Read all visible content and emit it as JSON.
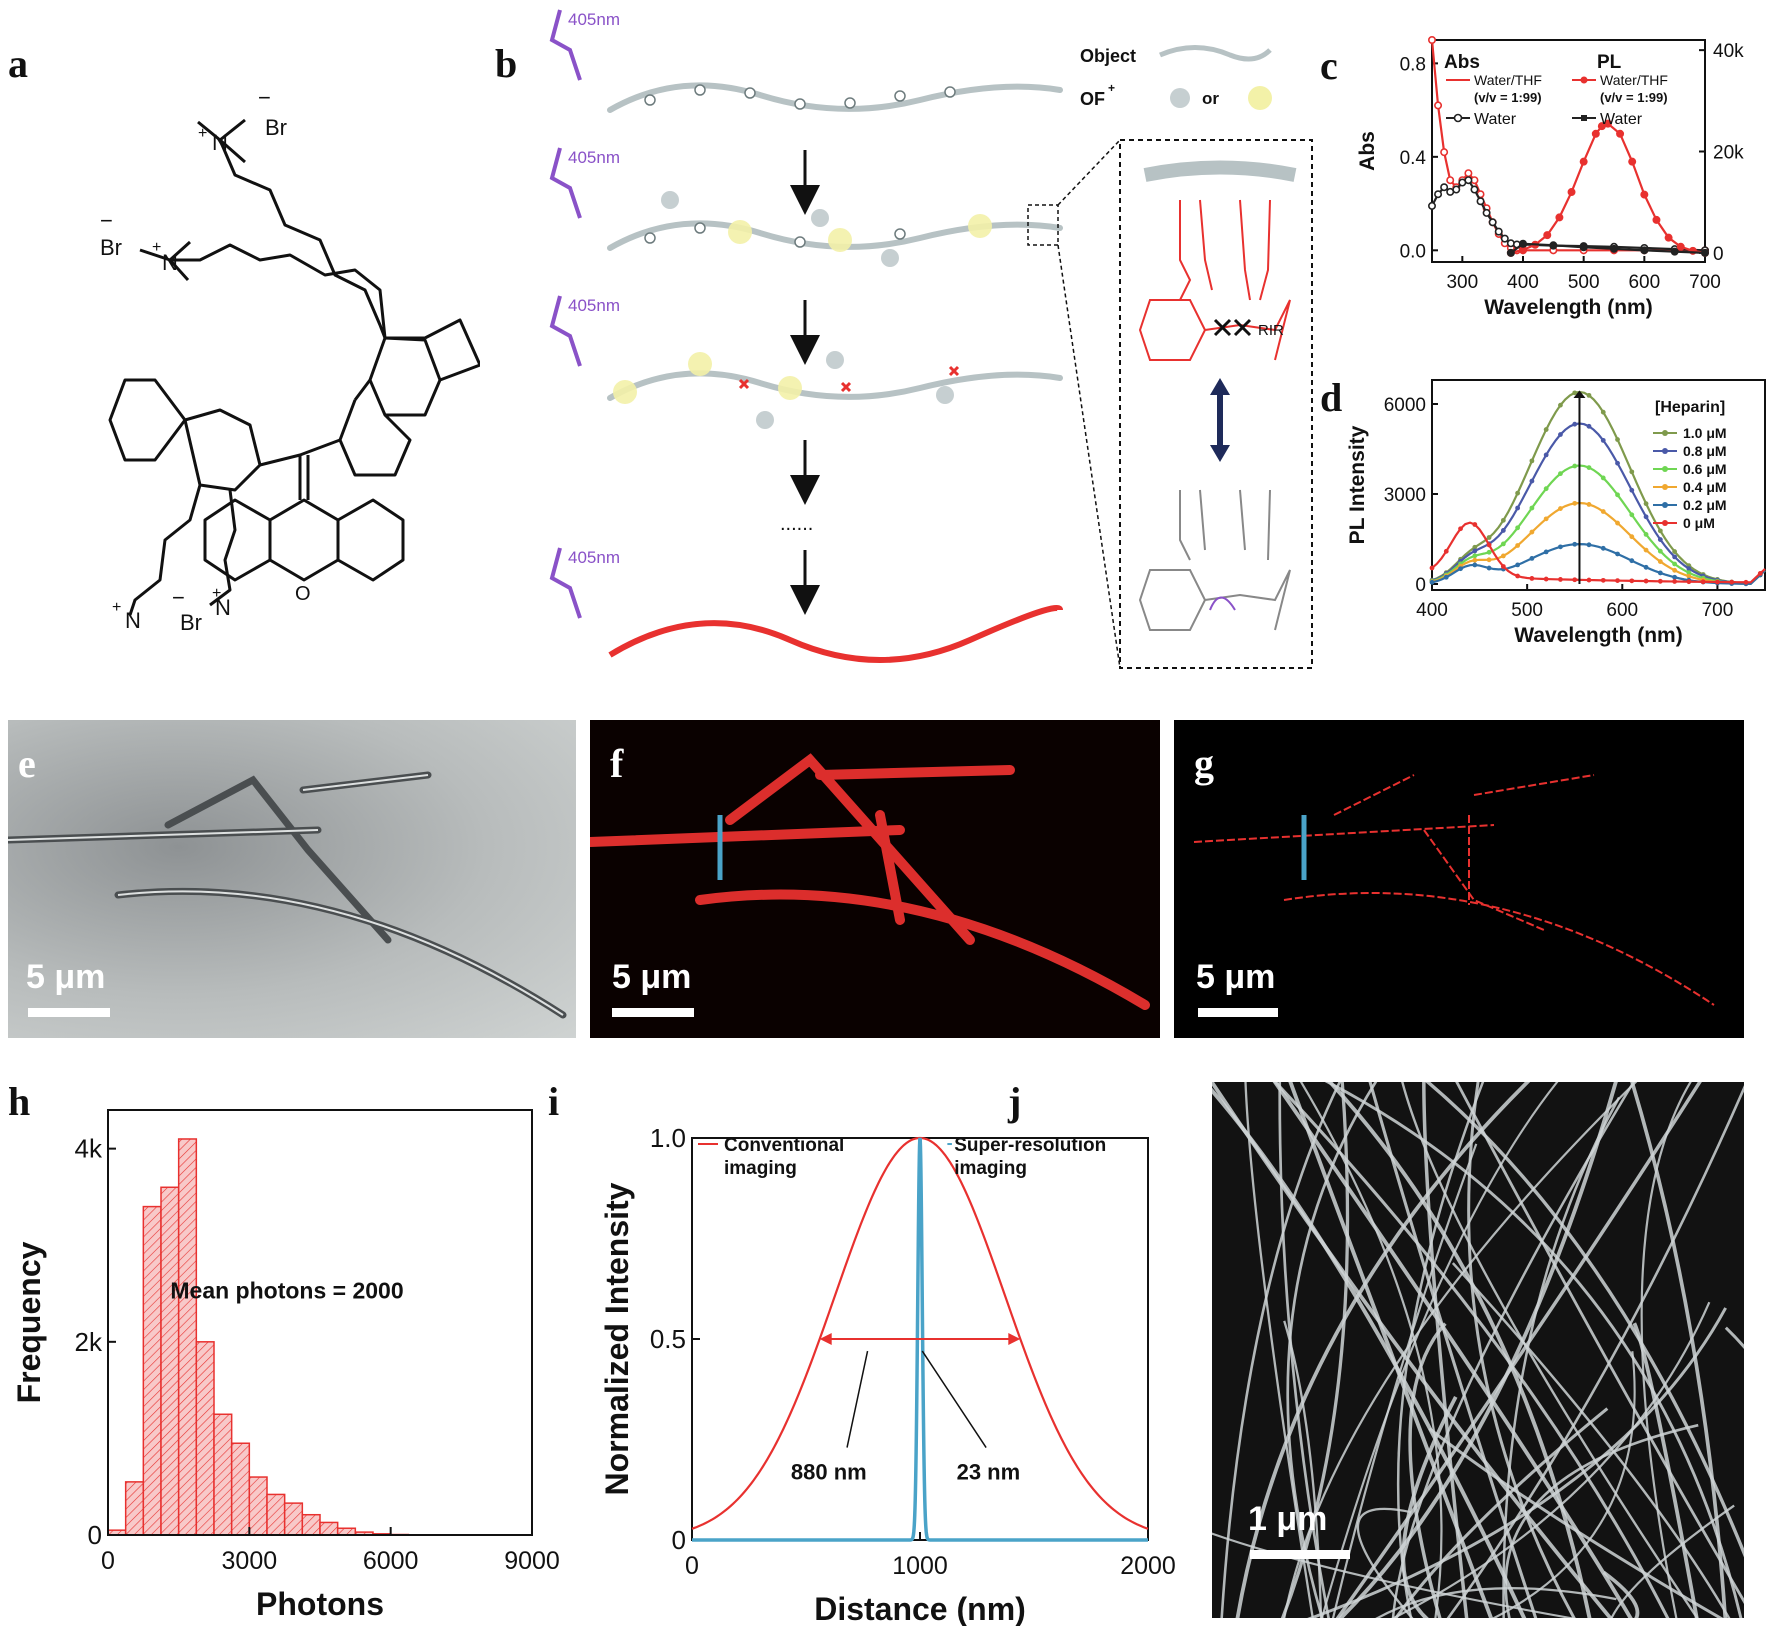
{
  "labels": {
    "a": "a",
    "b": "b",
    "c": "c",
    "d": "d",
    "e": "e",
    "f": "f",
    "g": "g",
    "h": "h",
    "i": "i",
    "j": "j"
  },
  "panel_a": {
    "br_ion": "Br",
    "minus": "−",
    "plus": "+",
    "nitrogen": "N",
    "oxygen": "O"
  },
  "panel_b": {
    "laser": "405nm",
    "legend_object": "Object",
    "legend_of": "OF",
    "legend_of_sup": "+",
    "legend_or": "or",
    "ellipsis": "......",
    "rir": "RIR"
  },
  "panel_e": {
    "scale": "5 μm"
  },
  "panel_f": {
    "scale": "5 μm"
  },
  "panel_g": {
    "scale": "5 μm"
  },
  "panel_j": {
    "scale": "1 μm"
  },
  "colors": {
    "red": "#e8312f",
    "gray": "#9aa6a8",
    "blue": "#4aa3c8",
    "purple": "#8a52c8",
    "yellow": "#f3f1a8"
  },
  "chart_data": [
    {
      "id": "c",
      "type": "line",
      "xlabel": "Wavelength (nm)",
      "ylabel": "Abs",
      "xlim": [
        250,
        700
      ],
      "ylim": [
        -0.05,
        0.9
      ],
      "y2lim": [
        -1800,
        42000
      ],
      "xticks": [
        300,
        400,
        500,
        600,
        700
      ],
      "yticks": [
        "0.0",
        "0.4",
        "0.8"
      ],
      "yticks_vals": [
        0,
        0.4,
        0.8
      ],
      "y2ticks": [
        "0",
        "20k",
        "40k"
      ],
      "y2ticks_vals": [
        0,
        20000,
        40000
      ],
      "legend": {
        "abs_title": "Abs",
        "pl_title": "PL",
        "water_thf": "Water/THF",
        "ratio": "(v/v = 1:99)",
        "water": "Water"
      },
      "series": [
        {
          "name": "Water/THF",
          "group": "Abs",
          "axis": "left",
          "color": "#e8312f",
          "style": "open",
          "x": [
            250,
            260,
            270,
            280,
            290,
            300,
            310,
            320,
            330,
            340,
            350,
            360,
            370,
            380,
            390,
            400,
            450,
            500,
            550,
            600,
            650,
            700
          ],
          "y": [
            0.9,
            0.62,
            0.42,
            0.3,
            0.27,
            0.3,
            0.33,
            0.3,
            0.24,
            0.18,
            0.12,
            0.07,
            0.03,
            0.01,
            0.0,
            0.0,
            0.0,
            0.0,
            0.0,
            0.0,
            0.0,
            0.0
          ]
        },
        {
          "name": "Water",
          "group": "Abs",
          "axis": "left",
          "color": "#222222",
          "style": "open",
          "x": [
            250,
            260,
            270,
            280,
            290,
            300,
            310,
            320,
            330,
            340,
            350,
            360,
            370,
            380,
            390,
            400,
            450,
            500,
            550,
            600,
            650,
            700
          ],
          "y": [
            0.19,
            0.24,
            0.27,
            0.25,
            0.26,
            0.29,
            0.3,
            0.26,
            0.21,
            0.16,
            0.12,
            0.08,
            0.05,
            0.03,
            0.025,
            0.025,
            0.02,
            0.018,
            0.015,
            0.01,
            0.005,
            0.0
          ]
        },
        {
          "name": "Water/THF",
          "group": "PL",
          "axis": "right",
          "color": "#e8312f",
          "style": "filled",
          "x": [
            380,
            400,
            420,
            440,
            460,
            480,
            500,
            520,
            530,
            540,
            560,
            580,
            600,
            620,
            640,
            660,
            680,
            700
          ],
          "y": [
            0,
            600,
            1600,
            3500,
            7000,
            12000,
            18000,
            23500,
            25000,
            25500,
            23500,
            18000,
            11500,
            6500,
            3000,
            1200,
            400,
            0
          ]
        },
        {
          "name": "Water",
          "group": "PL",
          "axis": "right",
          "color": "#222222",
          "style": "filled",
          "x": [
            380,
            400,
            450,
            500,
            550,
            600,
            650,
            700
          ],
          "y": [
            0,
            1800,
            1500,
            1100,
            800,
            500,
            250,
            0
          ]
        }
      ]
    },
    {
      "id": "d",
      "type": "line",
      "xlabel": "Wavelength (nm)",
      "ylabel": "PL Intensity",
      "xlim": [
        400,
        750
      ],
      "ylim": [
        -200,
        6800
      ],
      "xticks": [
        400,
        500,
        600,
        700
      ],
      "yticks": [
        "0",
        "3000",
        "6000"
      ],
      "yticks_vals": [
        0,
        3000,
        6000
      ],
      "legend_title": "[Heparin]",
      "series": [
        {
          "name": "1.0 μM",
          "color": "#7f9a4c",
          "peak": 6400
        },
        {
          "name": "0.8 μM",
          "color": "#4a59a8",
          "peak": 5350
        },
        {
          "name": "0.6 μM",
          "color": "#6fd653",
          "peak": 3950
        },
        {
          "name": "0.4 μM",
          "color": "#f0a830",
          "peak": 2700
        },
        {
          "name": "0.2 μM",
          "color": "#2f6fa6",
          "peak": 1330
        },
        {
          "name": "0 μM",
          "color": "#e8312f",
          "peak": 1800
        }
      ],
      "peak_wavelength": 555
    },
    {
      "id": "h",
      "type": "bar",
      "xlabel": "Photons",
      "ylabel": "Frequency",
      "xlim": [
        0,
        9000
      ],
      "ylim": [
        0,
        4400
      ],
      "xticks": [
        0,
        3000,
        6000,
        9000
      ],
      "yticks": [
        "0",
        "2k",
        "4k"
      ],
      "yticks_vals": [
        0,
        2000,
        4000
      ],
      "bin_width": 375,
      "bin_starts": [
        0,
        375,
        750,
        1125,
        1500,
        1875,
        2250,
        2625,
        3000,
        3375,
        3750,
        4125,
        4500,
        4875,
        5250,
        5625,
        6000,
        6375
      ],
      "values": [
        50,
        550,
        3400,
        3600,
        4100,
        2000,
        1250,
        950,
        600,
        420,
        330,
        210,
        130,
        70,
        30,
        12,
        5,
        2
      ],
      "annotation": "Mean photons = 2000"
    },
    {
      "id": "i",
      "type": "line",
      "xlabel": "Distance (nm)",
      "ylabel": "Normalized Intensity",
      "xlim": [
        0,
        2000
      ],
      "ylim": [
        0,
        1.0
      ],
      "xticks": [
        0,
        1000,
        2000
      ],
      "yticks": [
        "0",
        "0.5",
        "1.0"
      ],
      "yticks_vals": [
        0,
        0.5,
        1.0
      ],
      "series": [
        {
          "name": "Conventional imaging",
          "line1": "Conventional",
          "line2": "imaging",
          "color": "#e8312f",
          "center": 1000,
          "fwhm": 880
        },
        {
          "name": "Super-resolution imaging",
          "line1": "Super-resolution",
          "line2": "imaging",
          "color": "#4aa3c8",
          "center": 1000,
          "fwhm": 23
        }
      ],
      "annotations": [
        "880 nm",
        "23 nm"
      ]
    }
  ]
}
